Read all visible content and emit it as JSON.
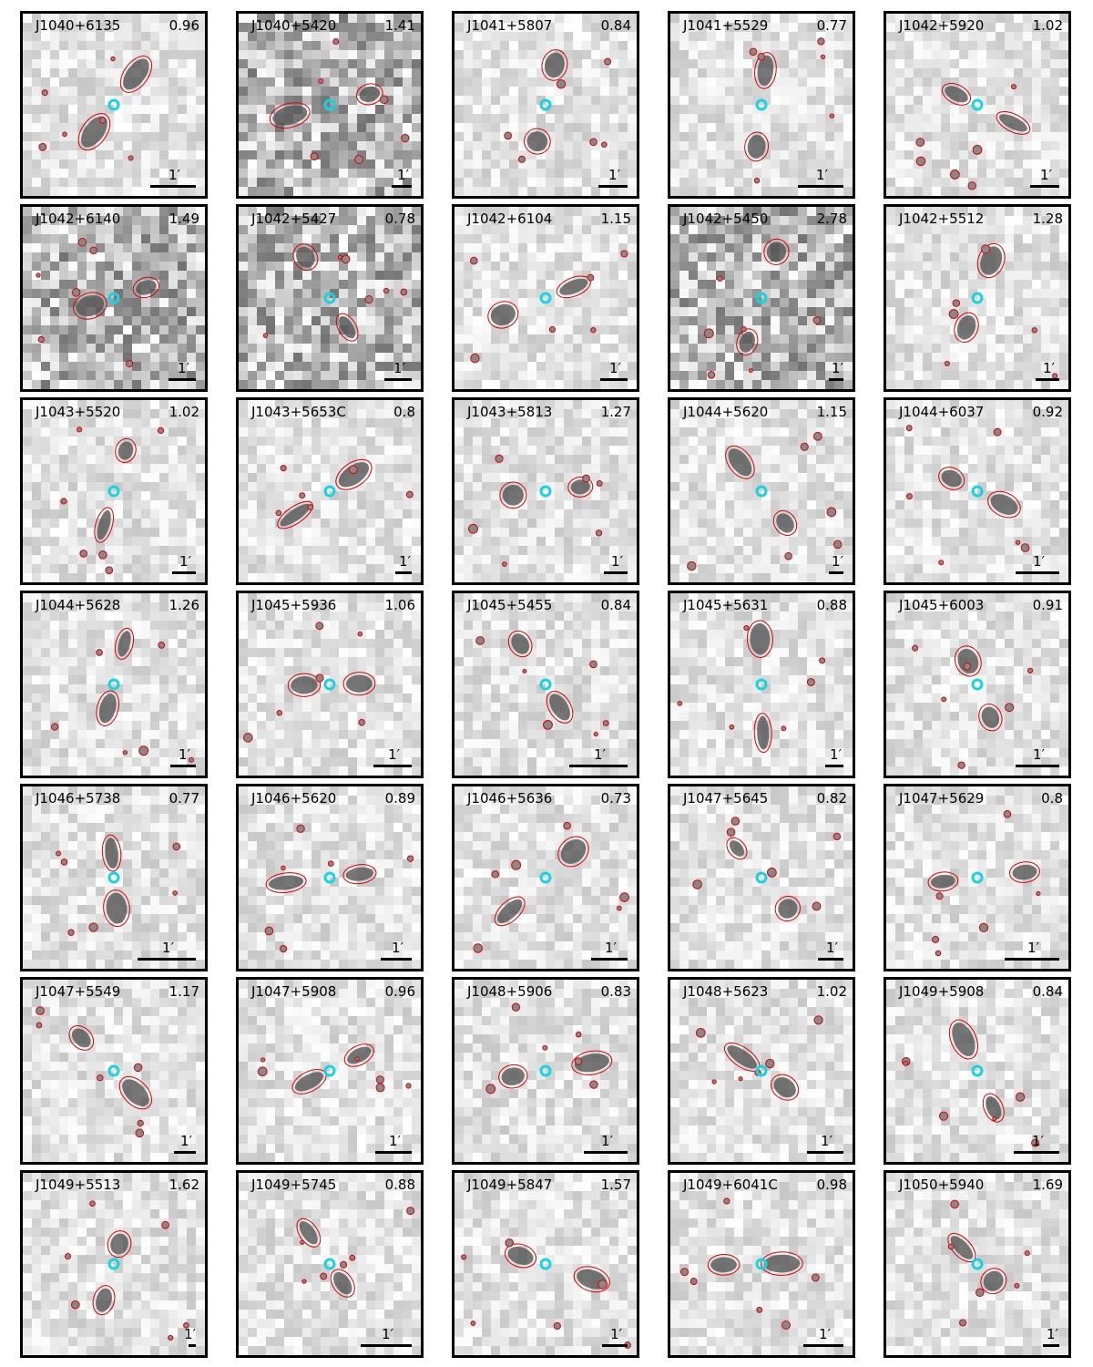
{
  "panels": [
    {
      "name": "J1040+6135",
      "value": "0.96",
      "scale": "1′"
    },
    {
      "name": "J1040+5420",
      "value": "1.41",
      "scale": "1′"
    },
    {
      "name": "J1041+5807",
      "value": "0.84",
      "scale": "1′"
    },
    {
      "name": "J1041+5529",
      "value": "0.77",
      "scale": "1′"
    },
    {
      "name": "J1042+5920",
      "value": "1.02",
      "scale": "1′"
    },
    {
      "name": "J1042+6140",
      "value": "1.49",
      "scale": "1′"
    },
    {
      "name": "J1042+5427",
      "value": "0.78",
      "scale": "1′"
    },
    {
      "name": "J1042+6104",
      "value": "1.15",
      "scale": "1′"
    },
    {
      "name": "J1042+5450",
      "value": "2.78",
      "scale": "1′"
    },
    {
      "name": "J1042+5512",
      "value": "1.28",
      "scale": "1′"
    },
    {
      "name": "J1043+5520",
      "value": "1.02",
      "scale": "1′"
    },
    {
      "name": "J1043+5653C",
      "value": "0.8",
      "scale": "1′"
    },
    {
      "name": "J1043+5813",
      "value": "1.27",
      "scale": "1′"
    },
    {
      "name": "J1044+5620",
      "value": "1.15",
      "scale": "1′"
    },
    {
      "name": "J1044+6037",
      "value": "0.92",
      "scale": "1′"
    },
    {
      "name": "J1044+5628",
      "value": "1.26",
      "scale": "1′"
    },
    {
      "name": "J1045+5936",
      "value": "1.06",
      "scale": "1′"
    },
    {
      "name": "J1045+5455",
      "value": "0.84",
      "scale": "1′"
    },
    {
      "name": "J1045+5631",
      "value": "0.88",
      "scale": "1′"
    },
    {
      "name": "J1045+6003",
      "value": "0.91",
      "scale": "1′"
    },
    {
      "name": "J1046+5738",
      "value": "0.77",
      "scale": "1′"
    },
    {
      "name": "J1046+5620",
      "value": "0.89",
      "scale": "1′"
    },
    {
      "name": "J1046+5636",
      "value": "0.73",
      "scale": "1′"
    },
    {
      "name": "J1047+5645",
      "value": "0.82",
      "scale": "1′"
    },
    {
      "name": "J1047+5629",
      "value": "0.8",
      "scale": "1′"
    },
    {
      "name": "J1047+5549",
      "value": "1.17",
      "scale": "1′"
    },
    {
      "name": "J1047+5908",
      "value": "0.96",
      "scale": "1′"
    },
    {
      "name": "J1048+5906",
      "value": "0.83",
      "scale": "1′"
    },
    {
      "name": "J1048+5623",
      "value": "1.02",
      "scale": "1′"
    },
    {
      "name": "J1049+5908",
      "value": "0.84",
      "scale": "1′"
    },
    {
      "name": "J1049+5513",
      "value": "1.62",
      "scale": "1′"
    },
    {
      "name": "J1049+5745",
      "value": "0.88",
      "scale": "1′"
    },
    {
      "name": "J1049+5847",
      "value": "1.57",
      "scale": "1′"
    },
    {
      "name": "J1049+6041C",
      "value": "0.98",
      "scale": "1′"
    },
    {
      "name": "J1050+5940",
      "value": "1.69",
      "scale": "1′"
    }
  ]
}
